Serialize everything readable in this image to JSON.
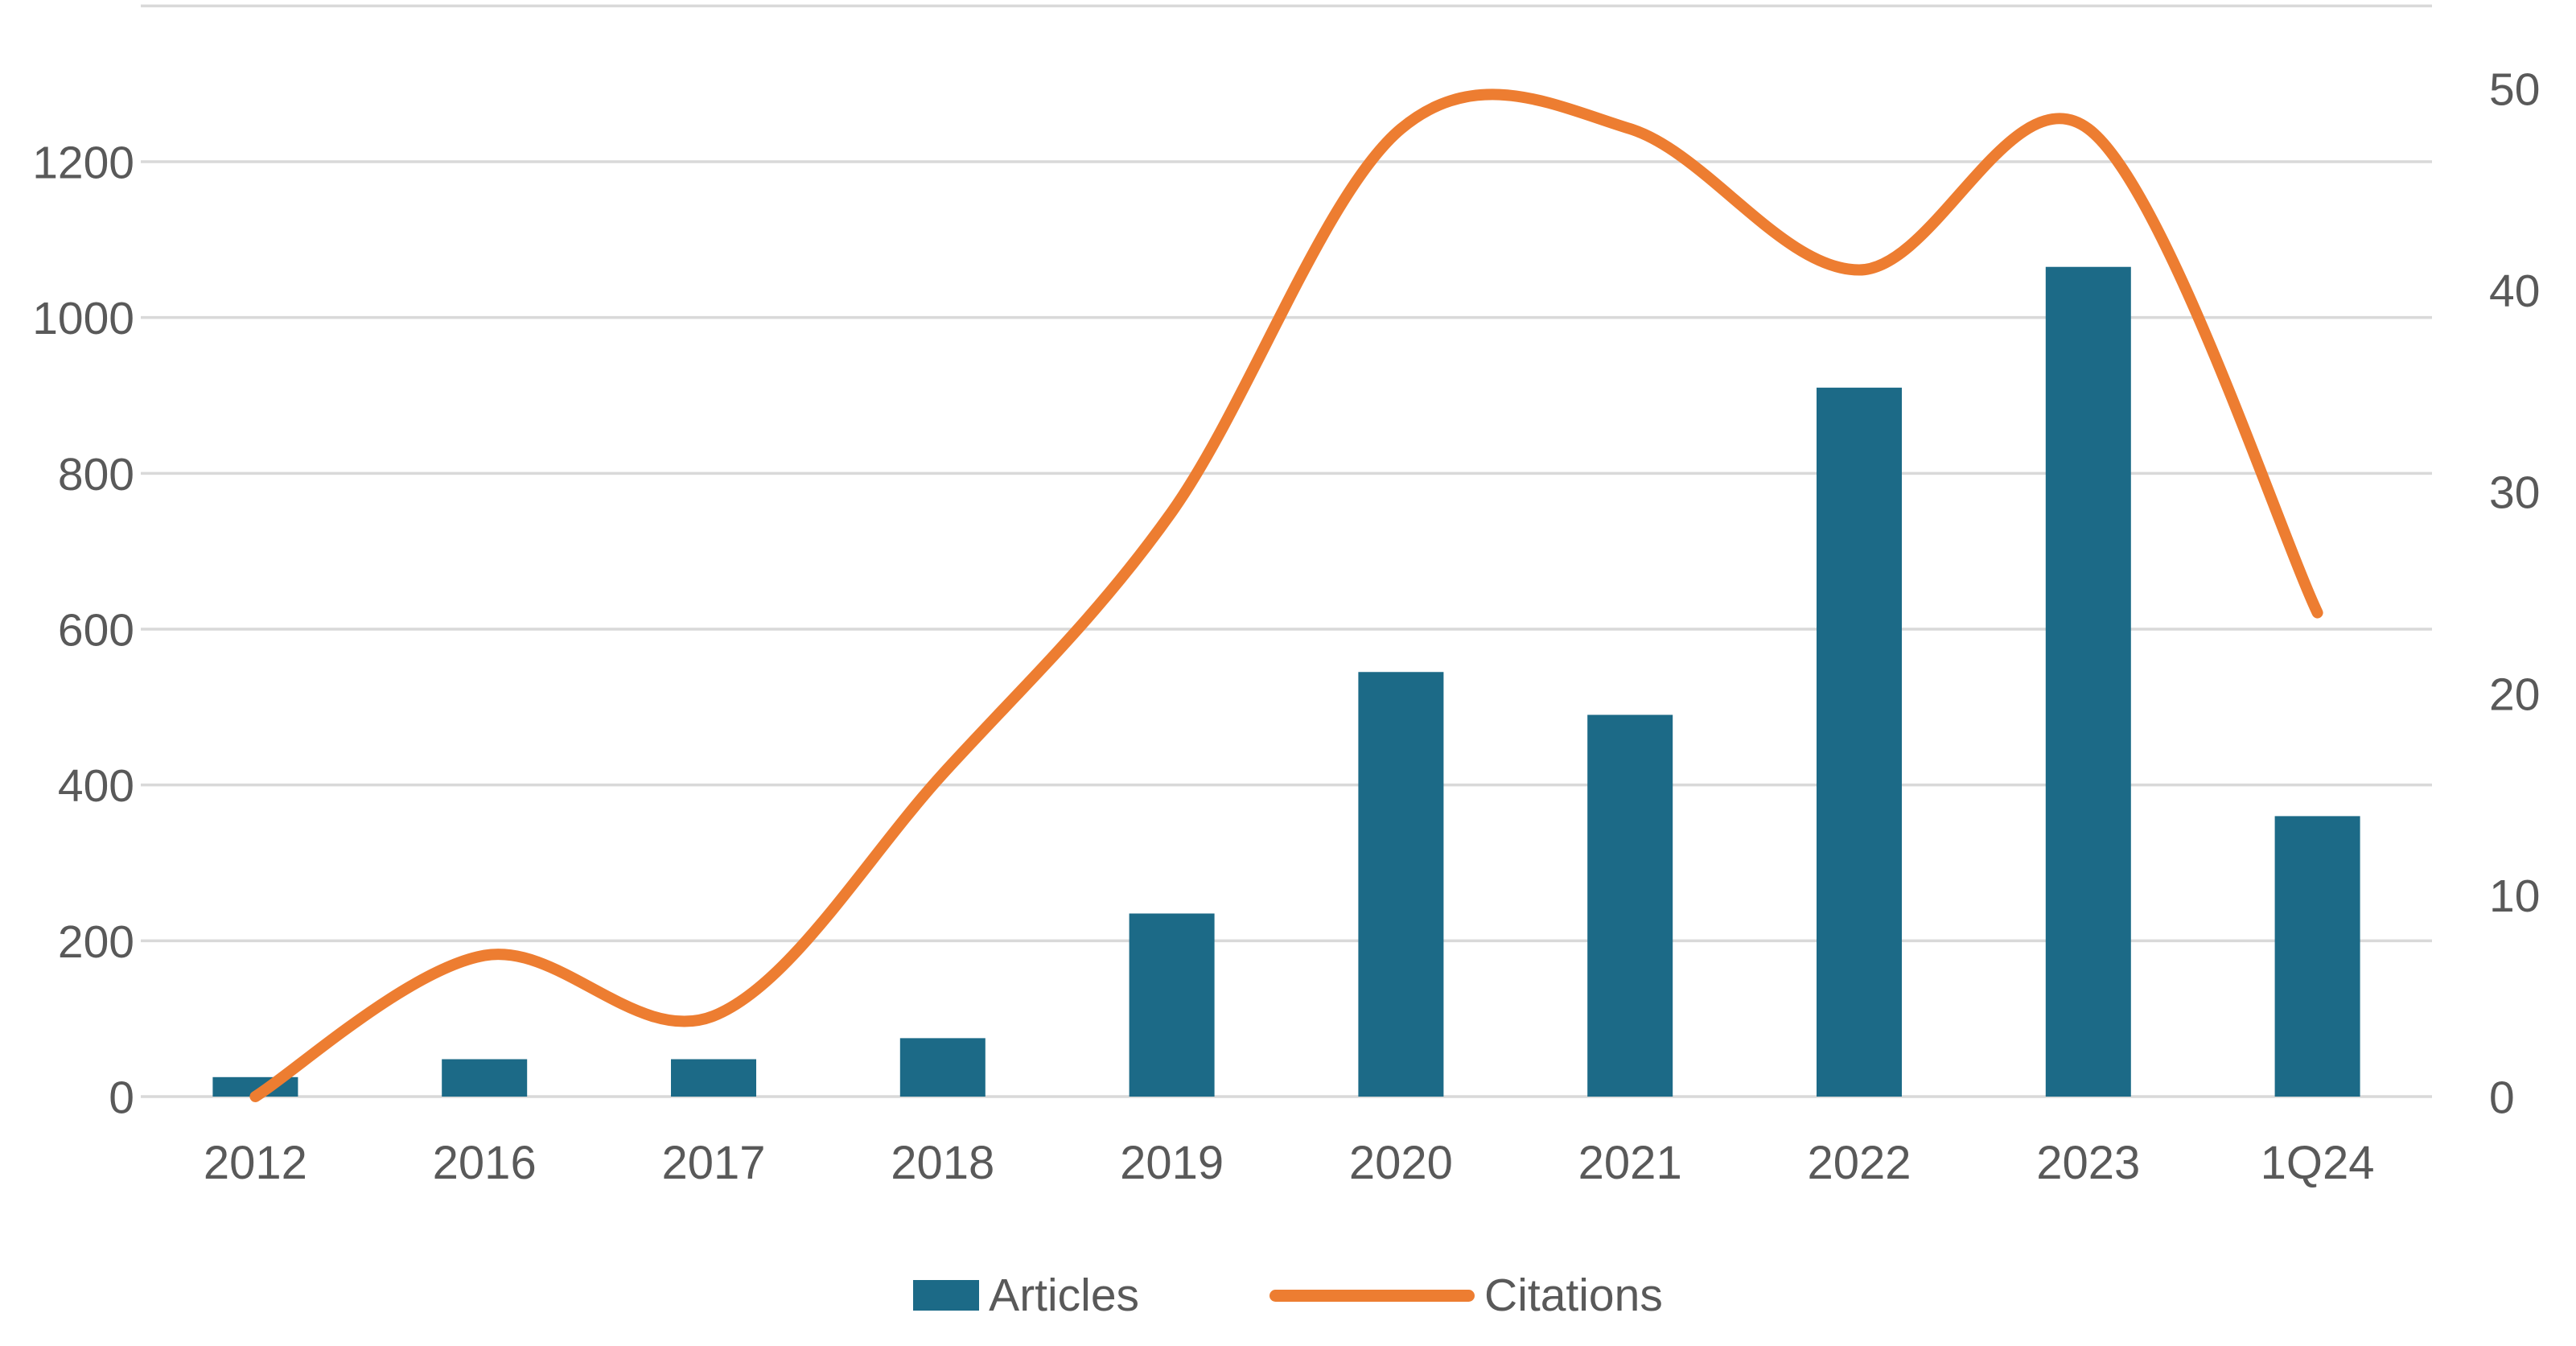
{
  "chart_data": {
    "type": "bar",
    "combo": "bar+line dual axis",
    "title": "",
    "xlabel": "",
    "ylabel": "",
    "categories": [
      "2012",
      "2016",
      "2017",
      "2018",
      "2019",
      "2020",
      "2021",
      "2022",
      "2023",
      "1Q24"
    ],
    "series": [
      {
        "name": "Articles",
        "type": "bar",
        "axis": "left",
        "values": [
          25,
          48,
          48,
          75,
          235,
          545,
          490,
          910,
          1065,
          360
        ]
      },
      {
        "name": "Citations",
        "type": "line",
        "axis": "right",
        "smooth": true,
        "values": [
          0,
          7,
          4,
          16,
          29,
          48,
          48,
          41,
          48,
          24
        ]
      }
    ],
    "left_axis": {
      "min": 0,
      "max": 1400,
      "tick_step": 200,
      "tick_labels": [
        "0",
        "200",
        "400",
        "600",
        "800",
        "1000",
        "1200"
      ]
    },
    "right_axis": {
      "min": 0,
      "max": 50,
      "tick_step": 10,
      "tick_labels": [
        "0",
        "10",
        "20",
        "30",
        "40",
        "50"
      ]
    },
    "grid": true,
    "legend_position": "bottom-center"
  },
  "colors": {
    "bar": "#1C6A87",
    "line": "#ED7D31",
    "axis_text": "#595959",
    "gridline": "#D9D9D9",
    "background": "#FFFFFF"
  }
}
